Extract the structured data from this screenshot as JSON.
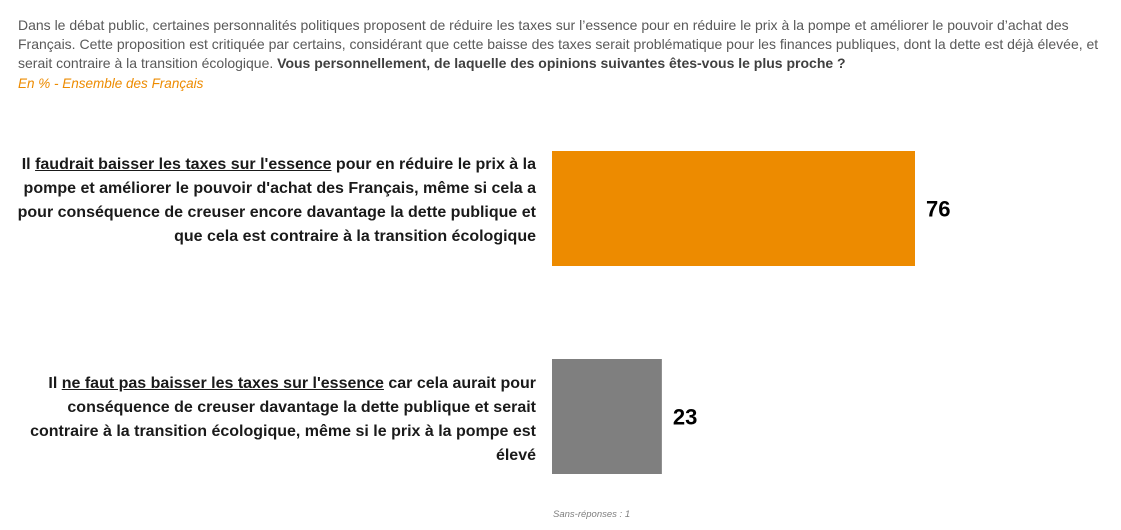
{
  "question": {
    "intro": "Dans le débat public, certaines personnalités politiques proposent de réduire les taxes sur l’essence pour en réduire le prix à la pompe et améliorer le pouvoir d’achat des Français. Cette proposition est critiquée par certains, considérant que cette baisse des taxes serait problématique pour les finances publiques, dont la dette est déjà élevée, et serait contraire à la transition écologique.",
    "ask": "Vous personnellement, de laquelle des opinions suivantes êtes-vous le plus proche ?"
  },
  "subtitle": "En % - Ensemble des Français",
  "footnote": "Sans-réponses : 1",
  "colors": {
    "series_1": "#ED8B00",
    "series_2": "#7F7F7F"
  },
  "chart_data": {
    "type": "bar",
    "orientation": "horizontal",
    "categories": [
      "Il faudrait baisser les taxes sur l'essence pour en réduire le prix à la pompe et améliorer le pouvoir d'achat des Français, même si cela a pour conséquence de creuser encore davantage la dette publique et que cela est contraire à la transition écologique",
      "Il ne faut pas baisser les taxes sur l'essence car cela aurait pour conséquence de creuser davantage la dette publique et serait contraire à la transition écologique, même si le prix à la pompe est élevé"
    ],
    "label_parts": [
      {
        "pre": "Il ",
        "underlined": "faudrait baisser les taxes sur l'essence",
        "post": " pour en réduire le prix à la pompe et améliorer le pouvoir d'achat des Français, même si cela a pour conséquence de creuser encore davantage la dette publique et que cela est contraire à la transition écologique"
      },
      {
        "pre": "Il ",
        "underlined": "ne faut pas baisser les taxes sur l'essence",
        "post": " car cela aurait pour conséquence de creuser davantage la dette publique et serait contraire à la transition écologique, même si le prix à la pompe est élevé"
      }
    ],
    "values": [
      76,
      23
    ],
    "value_labels": [
      "76",
      "23"
    ],
    "bar_colors": [
      "#ED8B00",
      "#7F7F7F"
    ],
    "xlim": [
      0,
      100
    ],
    "grid": false,
    "legend": "none"
  }
}
